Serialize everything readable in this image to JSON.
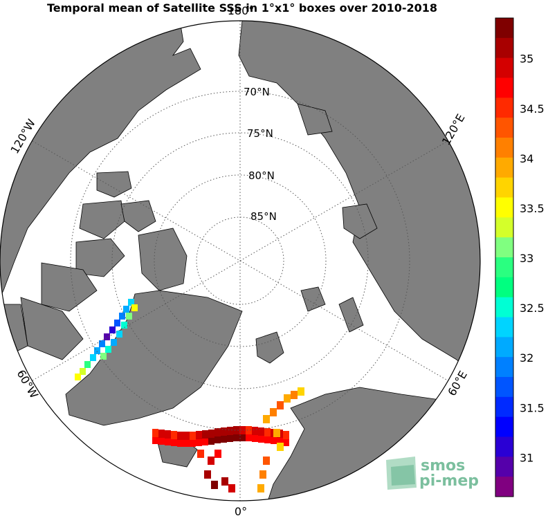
{
  "title": "Temporal mean of Satellite SSS in 1°x1° boxes over 2010-2018",
  "latitude_labels": [
    "70°N",
    "75°N",
    "80°N",
    "85°N"
  ],
  "longitude_labels": {
    "top": "180°",
    "bottom": "0°",
    "left_upper": "120°W",
    "left_lower": "60°W",
    "right_upper": "120°E",
    "right_lower": "60°E"
  },
  "colorbar": {
    "ticks": [
      "35",
      "34.5",
      "34",
      "33.5",
      "33",
      "32.5",
      "32",
      "31.5",
      "31"
    ],
    "colors_top_to_bottom": [
      "#7f0000",
      "#a80000",
      "#d40000",
      "#ff0000",
      "#ff2a00",
      "#ff5500",
      "#ff8000",
      "#ffaa00",
      "#ffd400",
      "#ffff00",
      "#d4ff2a",
      "#80ff80",
      "#2aff80",
      "#00ff80",
      "#00ffd4",
      "#00d4ff",
      "#00aaff",
      "#0080ff",
      "#0055ff",
      "#002aff",
      "#0000ff",
      "#2a00d4",
      "#5500aa",
      "#800080"
    ]
  },
  "colors": {
    "land": "#808080",
    "ocean": "#ffffff",
    "graticule": "#555555"
  },
  "logo": {
    "line1": "smos",
    "line2": "pi-mep"
  }
}
